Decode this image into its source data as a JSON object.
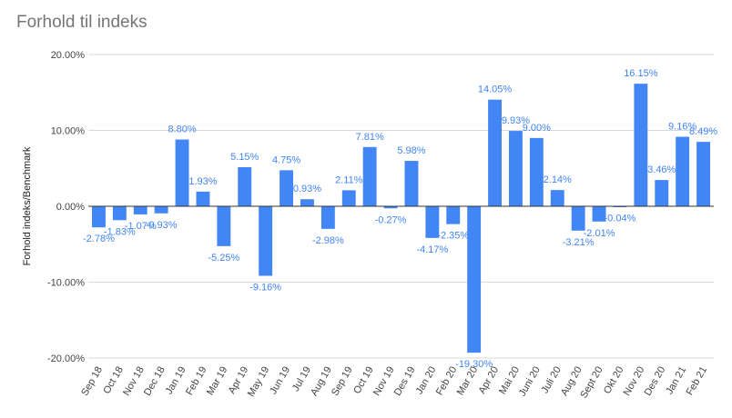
{
  "chart_data": {
    "type": "bar",
    "title": "Forhold til indeks",
    "xlabel": "",
    "ylabel": "Forhold indeks/Benchmark",
    "ylim": [
      -20,
      20
    ],
    "yticks": [
      "20.00%",
      "10.00%",
      "0.00%",
      "-10.00%",
      "-20.00%"
    ],
    "grid": true,
    "legend": "none",
    "bar_color": "#4285f4",
    "categories": [
      "Sep 18",
      "Oct 18",
      "Nov 18",
      "Dec 18",
      "Jan 19",
      "Feb 19",
      "Mar 19",
      "Apr 19",
      "May 19",
      "Jun 19",
      "Jul 19",
      "Aug 19",
      "Sep 19",
      "Oct 19",
      "Nov 19",
      "Des 19",
      "Jan 20",
      "Feb 20",
      "Mar 20",
      "Apr 20",
      "Mai 20",
      "Juni 20",
      "Juli 20",
      "Aug 20",
      "Sept 20",
      "Okt 20",
      "Nov 20",
      "Des 20",
      "Jan 21",
      "Feb 21"
    ],
    "values": [
      -2.78,
      -1.83,
      -1.07,
      -0.93,
      8.8,
      1.93,
      -5.25,
      5.15,
      -9.16,
      4.75,
      0.93,
      -2.98,
      2.11,
      7.81,
      -0.27,
      5.98,
      -4.17,
      -2.35,
      -19.3,
      14.05,
      9.93,
      9.0,
      2.14,
      -3.21,
      -2.01,
      -0.04,
      16.15,
      3.46,
      9.16,
      8.49
    ],
    "data_labels": [
      "-2.78%",
      "-1.83%",
      "-1.07%",
      "-0.93%",
      "8.80%",
      "1.93%",
      "-5.25%",
      "5.15%",
      "-9.16%",
      "4.75%",
      "0.93%",
      "-2.98%",
      "2.11%",
      "7.81%",
      "-0.27%",
      "5.98%",
      "-4.17%",
      "-2.35%",
      "-19.30%",
      "14.05%",
      "9.93%",
      "9.00%",
      "2.14%",
      "-3.21%",
      "-2.01%",
      "-0.04%",
      "16.15%",
      "3.46%",
      "9.16%",
      "8.49%"
    ]
  }
}
